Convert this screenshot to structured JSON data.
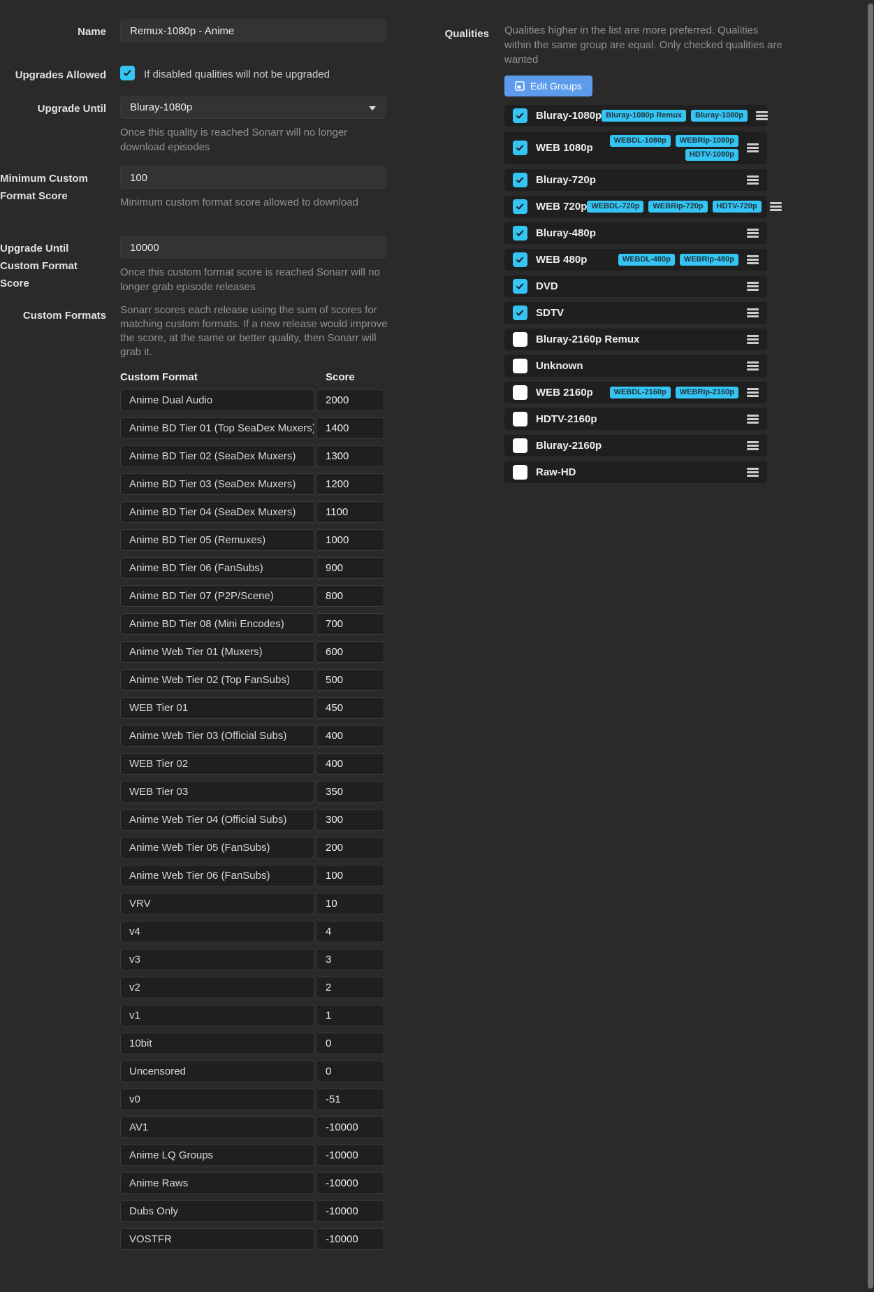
{
  "colors": {
    "accent": "#35c5f4",
    "button": "#5d9cec",
    "background": "#2a2a2a"
  },
  "form": {
    "name": {
      "label": "Name",
      "value": "Remux-1080p - Anime"
    },
    "upgrades_allowed": {
      "label": "Upgrades Allowed",
      "checked": true,
      "text": "If disabled qualities will not be upgraded"
    },
    "upgrade_until": {
      "label": "Upgrade Until",
      "value": "Bluray-1080p",
      "help": "Once this quality is reached Sonarr will no longer download episodes"
    },
    "min_custom_format_score": {
      "label": "Minimum Custom Format Score",
      "value": "100",
      "help": "Minimum custom format score allowed to download"
    },
    "upgrade_until_custom_format_score": {
      "label": "Upgrade Until Custom Format Score",
      "value": "10000",
      "help": "Once this custom format score is reached Sonarr will no longer grab episode releases"
    },
    "custom_formats": {
      "label": "Custom Formats",
      "description": "Sonarr scores each release using the sum of scores for matching custom formats. If a new release would improve the score, at the same or better quality, then Sonarr will grab it.",
      "headers": {
        "name": "Custom Format",
        "score": "Score"
      },
      "rows": [
        {
          "name": "Anime Dual Audio",
          "score": "2000"
        },
        {
          "name": "Anime BD Tier 01 (Top SeaDex Muxers)",
          "score": "1400"
        },
        {
          "name": "Anime BD Tier 02 (SeaDex Muxers)",
          "score": "1300"
        },
        {
          "name": "Anime BD Tier 03 (SeaDex Muxers)",
          "score": "1200"
        },
        {
          "name": "Anime BD Tier 04 (SeaDex Muxers)",
          "score": "1100"
        },
        {
          "name": "Anime BD Tier 05 (Remuxes)",
          "score": "1000"
        },
        {
          "name": "Anime BD Tier 06 (FanSubs)",
          "score": "900"
        },
        {
          "name": "Anime BD Tier 07 (P2P/Scene)",
          "score": "800"
        },
        {
          "name": "Anime BD Tier 08 (Mini Encodes)",
          "score": "700"
        },
        {
          "name": "Anime Web Tier 01 (Muxers)",
          "score": "600"
        },
        {
          "name": "Anime Web Tier 02 (Top FanSubs)",
          "score": "500"
        },
        {
          "name": "WEB Tier 01",
          "score": "450"
        },
        {
          "name": "Anime Web Tier 03 (Official Subs)",
          "score": "400"
        },
        {
          "name": "WEB Tier 02",
          "score": "400"
        },
        {
          "name": "WEB Tier 03",
          "score": "350"
        },
        {
          "name": "Anime Web Tier 04 (Official Subs)",
          "score": "300"
        },
        {
          "name": "Anime Web Tier 05 (FanSubs)",
          "score": "200"
        },
        {
          "name": "Anime Web Tier 06 (FanSubs)",
          "score": "100"
        },
        {
          "name": "VRV",
          "score": "10"
        },
        {
          "name": "v4",
          "score": "4"
        },
        {
          "name": "v3",
          "score": "3"
        },
        {
          "name": "v2",
          "score": "2"
        },
        {
          "name": "v1",
          "score": "1"
        },
        {
          "name": "10bit",
          "score": "0"
        },
        {
          "name": "Uncensored",
          "score": "0"
        },
        {
          "name": "v0",
          "score": "-51"
        },
        {
          "name": "AV1",
          "score": "-10000"
        },
        {
          "name": "Anime LQ Groups",
          "score": "-10000"
        },
        {
          "name": "Anime Raws",
          "score": "-10000"
        },
        {
          "name": "Dubs Only",
          "score": "-10000"
        },
        {
          "name": "VOSTFR",
          "score": "-10000"
        }
      ]
    }
  },
  "qualities": {
    "label": "Qualities",
    "help": "Qualities higher in the list are more preferred. Qualities within the same group are equal. Only checked qualities are wanted",
    "edit_groups_label": "Edit Groups",
    "items": [
      {
        "name": "Bluray-1080p",
        "checked": true,
        "tag_lines": [
          [
            "Bluray-1080p Remux",
            "Bluray-1080p"
          ]
        ]
      },
      {
        "name": "WEB 1080p",
        "checked": true,
        "tag_lines": [
          [
            "WEBDL-1080p",
            "WEBRip-1080p"
          ],
          [
            "HDTV-1080p"
          ]
        ]
      },
      {
        "name": "Bluray-720p",
        "checked": true,
        "tag_lines": []
      },
      {
        "name": "WEB 720p",
        "checked": true,
        "tag_lines": [
          [
            "WEBDL-720p",
            "WEBRip-720p",
            "HDTV-720p"
          ]
        ]
      },
      {
        "name": "Bluray-480p",
        "checked": true,
        "tag_lines": []
      },
      {
        "name": "WEB 480p",
        "checked": true,
        "tag_lines": [
          [
            "WEBDL-480p",
            "WEBRip-480p"
          ]
        ]
      },
      {
        "name": "DVD",
        "checked": true,
        "tag_lines": []
      },
      {
        "name": "SDTV",
        "checked": true,
        "tag_lines": []
      },
      {
        "name": "Bluray-2160p Remux",
        "checked": false,
        "tag_lines": []
      },
      {
        "name": "Unknown",
        "checked": false,
        "tag_lines": []
      },
      {
        "name": "WEB 2160p",
        "checked": false,
        "tag_lines": [
          [
            "WEBDL-2160p",
            "WEBRip-2160p"
          ]
        ]
      },
      {
        "name": "HDTV-2160p",
        "checked": false,
        "tag_lines": []
      },
      {
        "name": "Bluray-2160p",
        "checked": false,
        "tag_lines": []
      },
      {
        "name": "Raw-HD",
        "checked": false,
        "tag_lines": []
      }
    ]
  }
}
